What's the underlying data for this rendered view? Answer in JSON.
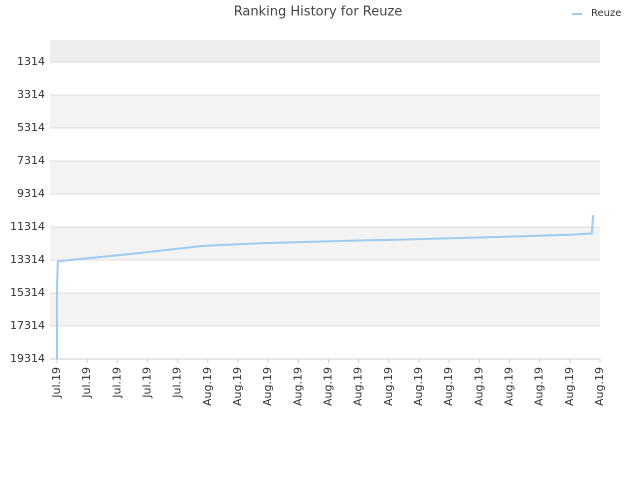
{
  "chart_data": {
    "type": "line",
    "title": "Ranking History for Reuze",
    "x": [
      0,
      0,
      0.03,
      0.76,
      2.42,
      4.9,
      6.73,
      9.71,
      12.03,
      15,
      17,
      17.73,
      17.77
    ],
    "series": [
      {
        "name": "Reuze",
        "color": "#9ecbf0",
        "values": [
          19314,
          15100,
          13400,
          13250,
          12950,
          12450,
          12300,
          12150,
          12050,
          11900,
          11780,
          11700,
          10600
        ]
      }
    ],
    "xlim": [
      -0.23,
      18
    ],
    "xticks": [
      {
        "value": 0,
        "label": "Jul.19"
      },
      {
        "value": 1,
        "label": "Jul.19"
      },
      {
        "value": 2,
        "label": "Jul.19"
      },
      {
        "value": 3,
        "label": "Jul.19"
      },
      {
        "value": 4,
        "label": "Jul.19"
      },
      {
        "value": 5,
        "label": "Aug.19"
      },
      {
        "value": 6,
        "label": "Aug.19"
      },
      {
        "value": 7,
        "label": "Aug.19"
      },
      {
        "value": 8,
        "label": "Aug.19"
      },
      {
        "value": 9,
        "label": "Aug.19"
      },
      {
        "value": 10,
        "label": "Aug.19"
      },
      {
        "value": 11,
        "label": "Aug.19"
      },
      {
        "value": 12,
        "label": "Aug.19"
      },
      {
        "value": 13,
        "label": "Aug.19"
      },
      {
        "value": 14,
        "label": "Aug.19"
      },
      {
        "value": 15,
        "label": "Aug.19"
      },
      {
        "value": 16,
        "label": "Aug.19"
      },
      {
        "value": 17,
        "label": "Aug.19"
      },
      {
        "value": 18,
        "label": "Aug.19"
      }
    ],
    "ylim": [
      -20,
      19314
    ],
    "y_inverted": true,
    "yticks": [
      1314,
      3314,
      5314,
      7314,
      9314,
      11314,
      13314,
      15314,
      17314,
      19314
    ],
    "grid": true,
    "legend": "top-right"
  }
}
